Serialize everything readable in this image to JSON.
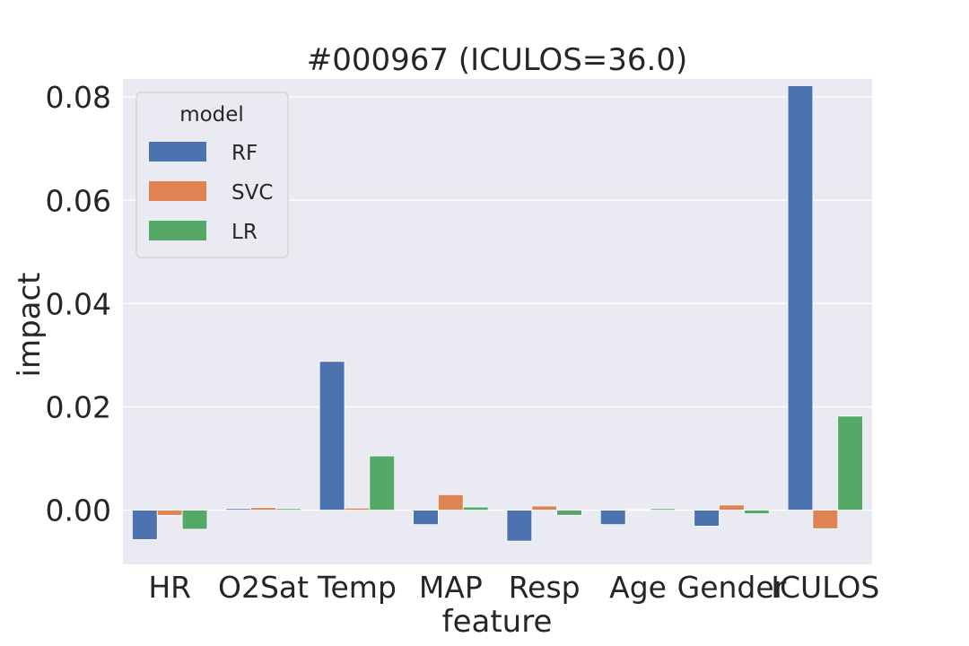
{
  "chart_data": {
    "type": "bar",
    "title": "#000967 (ICULOS=36.0)",
    "xlabel": "feature",
    "ylabel": "impact",
    "categories": [
      "HR",
      "O2Sat",
      "Temp",
      "MAP",
      "Resp",
      "Age",
      "Gender",
      "ICULOS"
    ],
    "ylim": [
      -0.0105,
      0.0835
    ],
    "yticks": [
      0.0,
      0.02,
      0.04,
      0.06,
      0.08
    ],
    "ytick_labels": [
      "0.00",
      "0.02",
      "0.04",
      "0.06",
      "0.08"
    ],
    "grid": true,
    "legend": {
      "title": "model",
      "placement": "top-left"
    },
    "series": [
      {
        "name": "RF",
        "color": "#4c72b0",
        "values": [
          -0.0057,
          0.0003,
          0.0288,
          -0.0028,
          -0.006,
          -0.0028,
          -0.0031,
          0.0822
        ]
      },
      {
        "name": "SVC",
        "color": "#dd8452",
        "values": [
          -0.001,
          0.0005,
          0.0004,
          0.003,
          0.0008,
          0.0001,
          0.001,
          -0.0036
        ]
      },
      {
        "name": "LR",
        "color": "#55a868",
        "values": [
          -0.0037,
          0.0003,
          0.0105,
          0.0006,
          -0.001,
          0.0003,
          -0.0007,
          0.0182
        ]
      }
    ],
    "colors": {
      "background": "#eaeaf2",
      "grid": "#ffffff",
      "text": "#262626"
    }
  }
}
